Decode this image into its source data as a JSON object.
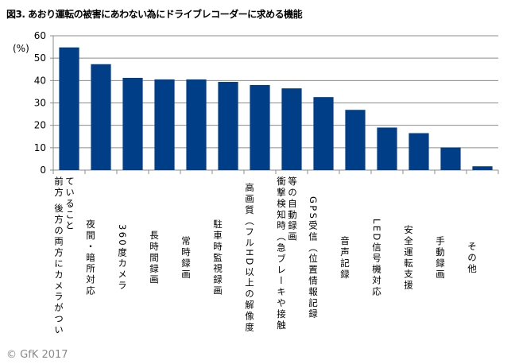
{
  "title": "図3. あおり運転の被害にあわない為にドライブレコーダーに求める機能",
  "copyright": "© GfK 2017",
  "chart_data": {
    "type": "bar",
    "title": "図3. あおり運転の被害にあわない為にドライブレコーダーに求める機能",
    "ylabel": "(%)",
    "xlabel": "",
    "ylim": [
      0,
      60
    ],
    "yticks": [
      0,
      10,
      20,
      30,
      40,
      50,
      60
    ],
    "grid": true,
    "bar_color": "#003F87",
    "categories": [
      "前方 後方の両方にカメラがついていること",
      "夜間・暗所対応",
      "360度カメラ",
      "長時間録画",
      "常時録画",
      "駐車時監視録画",
      "高画質（フルHD以上の解像度",
      "衝撃検知時（急ブレーキや接触等の自動録画",
      "GPS受信（位置情報記録",
      "音声記録",
      "LED信号機対応",
      "安全運転支援",
      "手動録画",
      "その他"
    ],
    "values": [
      54.8,
      47.3,
      41.2,
      40.5,
      40.5,
      39.4,
      38.0,
      36.5,
      32.6,
      26.9,
      19.0,
      16.5,
      10.1,
      1.7
    ]
  }
}
